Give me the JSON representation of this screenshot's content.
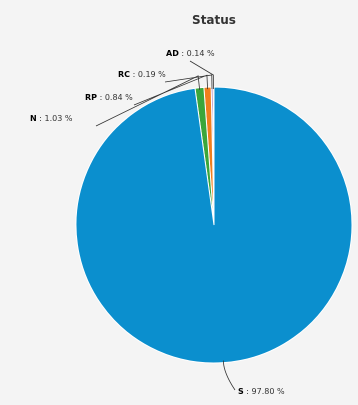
{
  "chart_data": {
    "type": "pie",
    "title": "Status",
    "start_angle_deg": 0,
    "slices": [
      {
        "name": "AD",
        "value": 0.14,
        "label": "0.14 %",
        "color": "#f04a23"
      },
      {
        "name": "RC",
        "value": 0.19,
        "label": "0.19 %",
        "color": "#7a3f98"
      },
      {
        "name": "RP",
        "value": 0.84,
        "label": "0.84 %",
        "color": "#f07f1e"
      },
      {
        "name": "N",
        "value": 1.03,
        "label": "1.03 %",
        "color": "#3ba63b"
      },
      {
        "name": "S",
        "value": 97.8,
        "label": "97.80 %",
        "color": "#0b8fce"
      }
    ],
    "legend": "none",
    "background": "#f4f4f4"
  }
}
